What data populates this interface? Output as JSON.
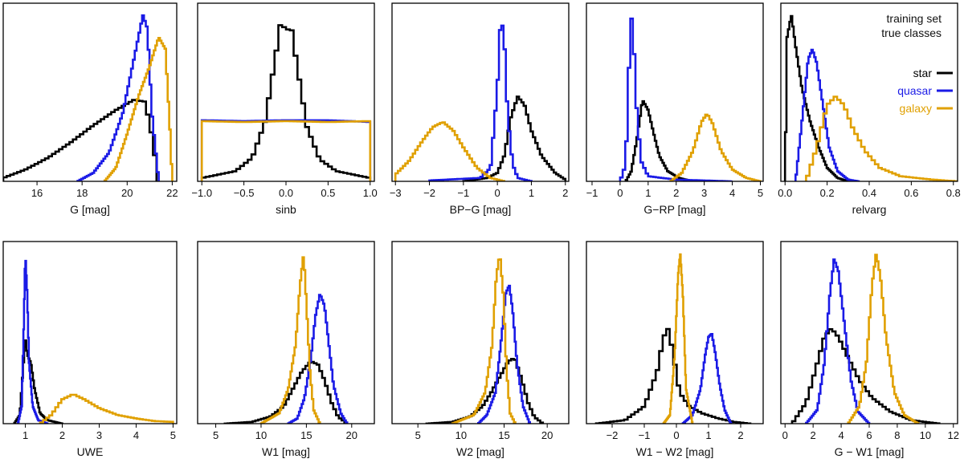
{
  "colors": {
    "star": "#000000",
    "quasar": "#1a1ae6",
    "galaxy": "#e0a000",
    "frame": "#000000"
  },
  "legend": {
    "title_lines": [
      "training set",
      "true classes"
    ],
    "entries": [
      {
        "label": "star",
        "series": "star"
      },
      {
        "label": "quasar",
        "series": "quasar"
      },
      {
        "label": "galaxy",
        "series": "galaxy"
      }
    ],
    "placement": "top-right"
  },
  "chart_data": [
    {
      "type": "area",
      "xlabel": "G [mag]",
      "xlim": [
        14.5,
        22.2
      ],
      "ylim": [
        0,
        1.05
      ],
      "xticks": [
        16,
        18,
        20,
        22
      ],
      "tick_labels": [
        "16",
        "18",
        "20",
        "22"
      ],
      "series": [
        {
          "name": "star",
          "x": [
            14.5,
            15.5,
            16.5,
            17.5,
            18.5,
            19.5,
            20.3,
            20.8,
            21.2,
            21.3
          ],
          "y": [
            0.02,
            0.07,
            0.14,
            0.23,
            0.33,
            0.42,
            0.48,
            0.47,
            0.2,
            0.0
          ]
        },
        {
          "name": "quasar",
          "x": [
            17.8,
            18.5,
            19.2,
            19.8,
            20.3,
            20.7,
            20.9,
            21.1,
            21.4
          ],
          "y": [
            0.0,
            0.05,
            0.17,
            0.4,
            0.72,
            0.98,
            0.9,
            0.4,
            0.0
          ]
        },
        {
          "name": "galaxy",
          "x": [
            19.0,
            19.5,
            20.0,
            20.5,
            21.0,
            21.4,
            21.7,
            21.9,
            22.0
          ],
          "y": [
            0.0,
            0.08,
            0.28,
            0.5,
            0.68,
            0.85,
            0.78,
            0.3,
            0.0
          ]
        }
      ]
    },
    {
      "type": "area",
      "xlabel": "sinb",
      "xlim": [
        -1.05,
        1.05
      ],
      "ylim": [
        0,
        1.05
      ],
      "xticks": [
        -1.0,
        -0.5,
        0.0,
        0.5,
        1.0
      ],
      "tick_labels": [
        "−1.0",
        "−0.5",
        "0.0",
        "0.5",
        "1.0"
      ],
      "series": [
        {
          "name": "star",
          "x": [
            -1.0,
            -0.6,
            -0.4,
            -0.25,
            -0.12,
            -0.05,
            0.0,
            0.05,
            0.12,
            0.25,
            0.4,
            0.6,
            1.0
          ],
          "y": [
            0.02,
            0.06,
            0.14,
            0.35,
            0.75,
            0.98,
            0.85,
            0.95,
            0.72,
            0.32,
            0.13,
            0.06,
            0.02
          ]
        },
        {
          "name": "quasar",
          "x": [
            -1.0,
            -0.5,
            0.0,
            0.5,
            1.0
          ],
          "y": [
            0.36,
            0.355,
            0.36,
            0.36,
            0.35
          ]
        },
        {
          "name": "galaxy",
          "x": [
            -1.0,
            -0.5,
            0.0,
            0.5,
            1.0
          ],
          "y": [
            0.355,
            0.35,
            0.355,
            0.35,
            0.355
          ]
        }
      ]
    },
    {
      "type": "area",
      "xlabel": "BP−G [mag]",
      "xlim": [
        -3.1,
        2.1
      ],
      "ylim": [
        0,
        1.05
      ],
      "xticks": [
        -3,
        -2,
        -1,
        0,
        1,
        2
      ],
      "tick_labels": [
        "−3",
        "−2",
        "−1",
        "0",
        "1",
        "2"
      ],
      "series": [
        {
          "name": "star",
          "x": [
            -1.0,
            -0.3,
            0.0,
            0.2,
            0.4,
            0.6,
            0.8,
            1.0,
            1.3,
            1.7,
            2.0
          ],
          "y": [
            0.0,
            0.02,
            0.05,
            0.15,
            0.38,
            0.5,
            0.45,
            0.3,
            0.15,
            0.05,
            0.01
          ]
        },
        {
          "name": "quasar",
          "x": [
            -2.0,
            -0.5,
            -0.2,
            0.0,
            0.1,
            0.2,
            0.3,
            0.45,
            0.6,
            1.0
          ],
          "y": [
            0.005,
            0.02,
            0.08,
            0.55,
            0.98,
            0.85,
            0.4,
            0.1,
            0.02,
            0.0
          ]
        },
        {
          "name": "galaxy",
          "x": [
            -3.0,
            -2.6,
            -2.2,
            -1.9,
            -1.6,
            -1.3,
            -1.0,
            -0.6,
            -0.2,
            0.2
          ],
          "y": [
            0.04,
            0.12,
            0.24,
            0.32,
            0.35,
            0.3,
            0.2,
            0.08,
            0.02,
            0.0
          ]
        }
      ]
    },
    {
      "type": "area",
      "xlabel": "G−RP [mag]",
      "xlim": [
        -1.2,
        5.1
      ],
      "ylim": [
        0,
        1.05
      ],
      "xticks": [
        -1,
        0,
        1,
        2,
        3,
        4,
        5
      ],
      "tick_labels": [
        "−1",
        "0",
        "1",
        "2",
        "3",
        "4",
        "5"
      ],
      "series": [
        {
          "name": "star",
          "x": [
            0.2,
            0.4,
            0.6,
            0.8,
            1.0,
            1.2,
            1.4,
            1.7,
            2.1,
            2.6
          ],
          "y": [
            0.0,
            0.06,
            0.25,
            0.48,
            0.42,
            0.28,
            0.15,
            0.06,
            0.02,
            0.0
          ]
        },
        {
          "name": "quasar",
          "x": [
            0.0,
            0.2,
            0.3,
            0.4,
            0.5,
            0.6,
            0.75,
            1.0,
            2.0,
            4.0
          ],
          "y": [
            0.0,
            0.1,
            0.6,
            0.98,
            0.75,
            0.4,
            0.12,
            0.03,
            0.01,
            0.0
          ]
        },
        {
          "name": "galaxy",
          "x": [
            1.8,
            2.2,
            2.6,
            2.9,
            3.1,
            3.3,
            3.6,
            4.0,
            4.5,
            5.0
          ],
          "y": [
            0.0,
            0.05,
            0.18,
            0.35,
            0.4,
            0.34,
            0.18,
            0.07,
            0.02,
            0.0
          ]
        }
      ]
    },
    {
      "type": "area",
      "xlabel": "relvarg",
      "xlim": [
        -0.02,
        0.82
      ],
      "ylim": [
        0,
        1.05
      ],
      "xticks": [
        0.0,
        0.2,
        0.4,
        0.6,
        0.8
      ],
      "tick_labels": [
        "0.0",
        "0.2",
        "0.4",
        "0.6",
        "0.8"
      ],
      "series": [
        {
          "name": "star",
          "x": [
            0.0,
            0.01,
            0.03,
            0.05,
            0.08,
            0.12,
            0.16,
            0.2,
            0.25,
            0.3
          ],
          "y": [
            0.0,
            0.85,
            0.98,
            0.8,
            0.55,
            0.35,
            0.2,
            0.08,
            0.02,
            0.0
          ]
        },
        {
          "name": "quasar",
          "x": [
            0.05,
            0.08,
            0.11,
            0.13,
            0.15,
            0.18,
            0.21,
            0.25,
            0.3,
            0.35
          ],
          "y": [
            0.0,
            0.35,
            0.72,
            0.78,
            0.7,
            0.45,
            0.2,
            0.06,
            0.01,
            0.0
          ]
        },
        {
          "name": "galaxy",
          "x": [
            0.1,
            0.15,
            0.2,
            0.24,
            0.28,
            0.32,
            0.38,
            0.45,
            0.55,
            0.7,
            0.82
          ],
          "y": [
            0.0,
            0.2,
            0.45,
            0.5,
            0.45,
            0.32,
            0.18,
            0.08,
            0.03,
            0.01,
            0.0
          ]
        }
      ]
    },
    {
      "type": "area",
      "xlabel": "UWE",
      "xlim": [
        0.4,
        5.1
      ],
      "ylim": [
        0,
        1.05
      ],
      "xticks": [
        1,
        2,
        3,
        4,
        5
      ],
      "tick_labels": [
        "1",
        "2",
        "3",
        "4",
        "5"
      ],
      "series": [
        {
          "name": "star",
          "x": [
            0.7,
            0.85,
            0.95,
            1.0,
            1.05,
            1.15,
            1.25,
            1.4,
            1.6,
            2.0
          ],
          "y": [
            0.0,
            0.05,
            0.35,
            0.5,
            0.4,
            0.35,
            0.2,
            0.06,
            0.02,
            0.0
          ]
        },
        {
          "name": "quasar",
          "x": [
            0.8,
            0.9,
            0.95,
            1.0,
            1.05,
            1.1,
            1.2,
            1.35,
            1.6
          ],
          "y": [
            0.0,
            0.1,
            0.5,
            0.98,
            0.75,
            0.35,
            0.1,
            0.02,
            0.0
          ]
        },
        {
          "name": "galaxy",
          "x": [
            1.4,
            1.7,
            2.0,
            2.3,
            2.6,
            3.0,
            3.5,
            4.0,
            4.5,
            5.0
          ],
          "y": [
            0.0,
            0.05,
            0.14,
            0.17,
            0.14,
            0.09,
            0.05,
            0.03,
            0.015,
            0.01
          ]
        }
      ]
    },
    {
      "type": "area",
      "xlabel": "W1 [mag]",
      "xlim": [
        3.0,
        22.5
      ],
      "ylim": [
        0,
        1.05
      ],
      "xticks": [
        5,
        10,
        15,
        20
      ],
      "tick_labels": [
        "5",
        "10",
        "15",
        "20"
      ],
      "series": [
        {
          "name": "star",
          "x": [
            6,
            9,
            11,
            12.5,
            13.5,
            14.5,
            15.5,
            16.3,
            17.0,
            17.8,
            18.5,
            19.5
          ],
          "y": [
            0.0,
            0.01,
            0.04,
            0.1,
            0.2,
            0.3,
            0.36,
            0.34,
            0.25,
            0.12,
            0.04,
            0.0
          ]
        },
        {
          "name": "quasar",
          "x": [
            13.0,
            14.0,
            14.8,
            15.5,
            16.0,
            16.5,
            17.0,
            17.5,
            18.0,
            18.8,
            19.5
          ],
          "y": [
            0.0,
            0.03,
            0.15,
            0.38,
            0.62,
            0.75,
            0.68,
            0.45,
            0.22,
            0.06,
            0.0
          ]
        },
        {
          "name": "galaxy",
          "x": [
            10.0,
            12.0,
            13.0,
            13.8,
            14.3,
            14.7,
            15.0,
            15.4,
            15.8,
            16.5
          ],
          "y": [
            0.0,
            0.06,
            0.2,
            0.45,
            0.8,
            0.98,
            0.7,
            0.3,
            0.08,
            0.0
          ]
        }
      ]
    },
    {
      "type": "area",
      "xlabel": "W2 [mag]",
      "xlim": [
        2.0,
        22.5
      ],
      "ylim": [
        0,
        1.05
      ],
      "xticks": [
        5,
        10,
        15,
        20
      ],
      "tick_labels": [
        "5",
        "10",
        "15",
        "20"
      ],
      "series": [
        {
          "name": "star",
          "x": [
            6,
            9,
            11,
            12.5,
            13.5,
            14.5,
            15.5,
            16.2,
            17.0,
            17.8,
            18.5,
            19.5
          ],
          "y": [
            0.0,
            0.01,
            0.04,
            0.1,
            0.18,
            0.27,
            0.36,
            0.38,
            0.26,
            0.12,
            0.04,
            0.0
          ]
        },
        {
          "name": "quasar",
          "x": [
            12.0,
            13.0,
            14.0,
            14.6,
            15.2,
            15.6,
            16.0,
            16.5,
            17.2,
            18.0
          ],
          "y": [
            0.0,
            0.05,
            0.18,
            0.45,
            0.75,
            0.8,
            0.65,
            0.35,
            0.1,
            0.0
          ]
        },
        {
          "name": "galaxy",
          "x": [
            9.0,
            11.5,
            12.8,
            13.6,
            14.1,
            14.5,
            14.9,
            15.3,
            15.7,
            16.3
          ],
          "y": [
            0.0,
            0.05,
            0.18,
            0.45,
            0.85,
            0.98,
            0.75,
            0.3,
            0.06,
            0.0
          ]
        }
      ]
    },
    {
      "type": "area",
      "xlabel": "W1 − W2 [mag]",
      "xlim": [
        -2.8,
        2.7
      ],
      "ylim": [
        0,
        1.05
      ],
      "xticks": [
        -2,
        -1,
        0,
        1,
        2
      ],
      "tick_labels": [
        "−2",
        "−1",
        "0",
        "1",
        "2"
      ],
      "series": [
        {
          "name": "star",
          "x": [
            -2.5,
            -1.6,
            -1.0,
            -0.6,
            -0.4,
            -0.25,
            -0.1,
            0.1,
            0.4,
            0.8,
            1.3,
            1.8,
            2.3
          ],
          "y": [
            0.0,
            0.02,
            0.1,
            0.3,
            0.5,
            0.55,
            0.4,
            0.18,
            0.1,
            0.06,
            0.03,
            0.01,
            0.0
          ]
        },
        {
          "name": "quasar",
          "x": [
            0.2,
            0.5,
            0.75,
            0.9,
            1.0,
            1.1,
            1.2,
            1.35,
            1.5,
            1.7
          ],
          "y": [
            0.0,
            0.05,
            0.2,
            0.4,
            0.5,
            0.52,
            0.42,
            0.22,
            0.08,
            0.0
          ]
        },
        {
          "name": "galaxy",
          "x": [
            -0.4,
            -0.2,
            -0.05,
            0.05,
            0.12,
            0.2,
            0.3,
            0.5
          ],
          "y": [
            0.0,
            0.05,
            0.4,
            0.85,
            0.98,
            0.75,
            0.2,
            0.0
          ]
        }
      ]
    },
    {
      "type": "area",
      "xlabel": "G − W1 [mag]",
      "xlim": [
        -0.3,
        12.3
      ],
      "ylim": [
        0,
        1.05
      ],
      "xticks": [
        0,
        2,
        4,
        6,
        8,
        10,
        12
      ],
      "tick_labels": [
        "0",
        "2",
        "4",
        "6",
        "8",
        "10",
        "12"
      ],
      "series": [
        {
          "name": "star",
          "x": [
            0.5,
            1.5,
            2.2,
            2.8,
            3.3,
            3.8,
            4.5,
            5.3,
            6.2,
            7.5,
            9.0,
            11.0
          ],
          "y": [
            0.0,
            0.12,
            0.32,
            0.5,
            0.55,
            0.5,
            0.38,
            0.25,
            0.15,
            0.07,
            0.02,
            0.0
          ]
        },
        {
          "name": "quasar",
          "x": [
            1.5,
            2.3,
            2.8,
            3.2,
            3.5,
            3.8,
            4.2,
            4.7,
            5.2,
            6.0
          ],
          "y": [
            0.0,
            0.08,
            0.35,
            0.75,
            0.95,
            0.88,
            0.6,
            0.25,
            0.07,
            0.0
          ]
        },
        {
          "name": "galaxy",
          "x": [
            4.5,
            5.3,
            5.8,
            6.2,
            6.5,
            6.8,
            7.2,
            7.8,
            8.5,
            9.5
          ],
          "y": [
            0.0,
            0.1,
            0.35,
            0.8,
            0.98,
            0.85,
            0.5,
            0.18,
            0.05,
            0.0
          ]
        }
      ]
    }
  ]
}
